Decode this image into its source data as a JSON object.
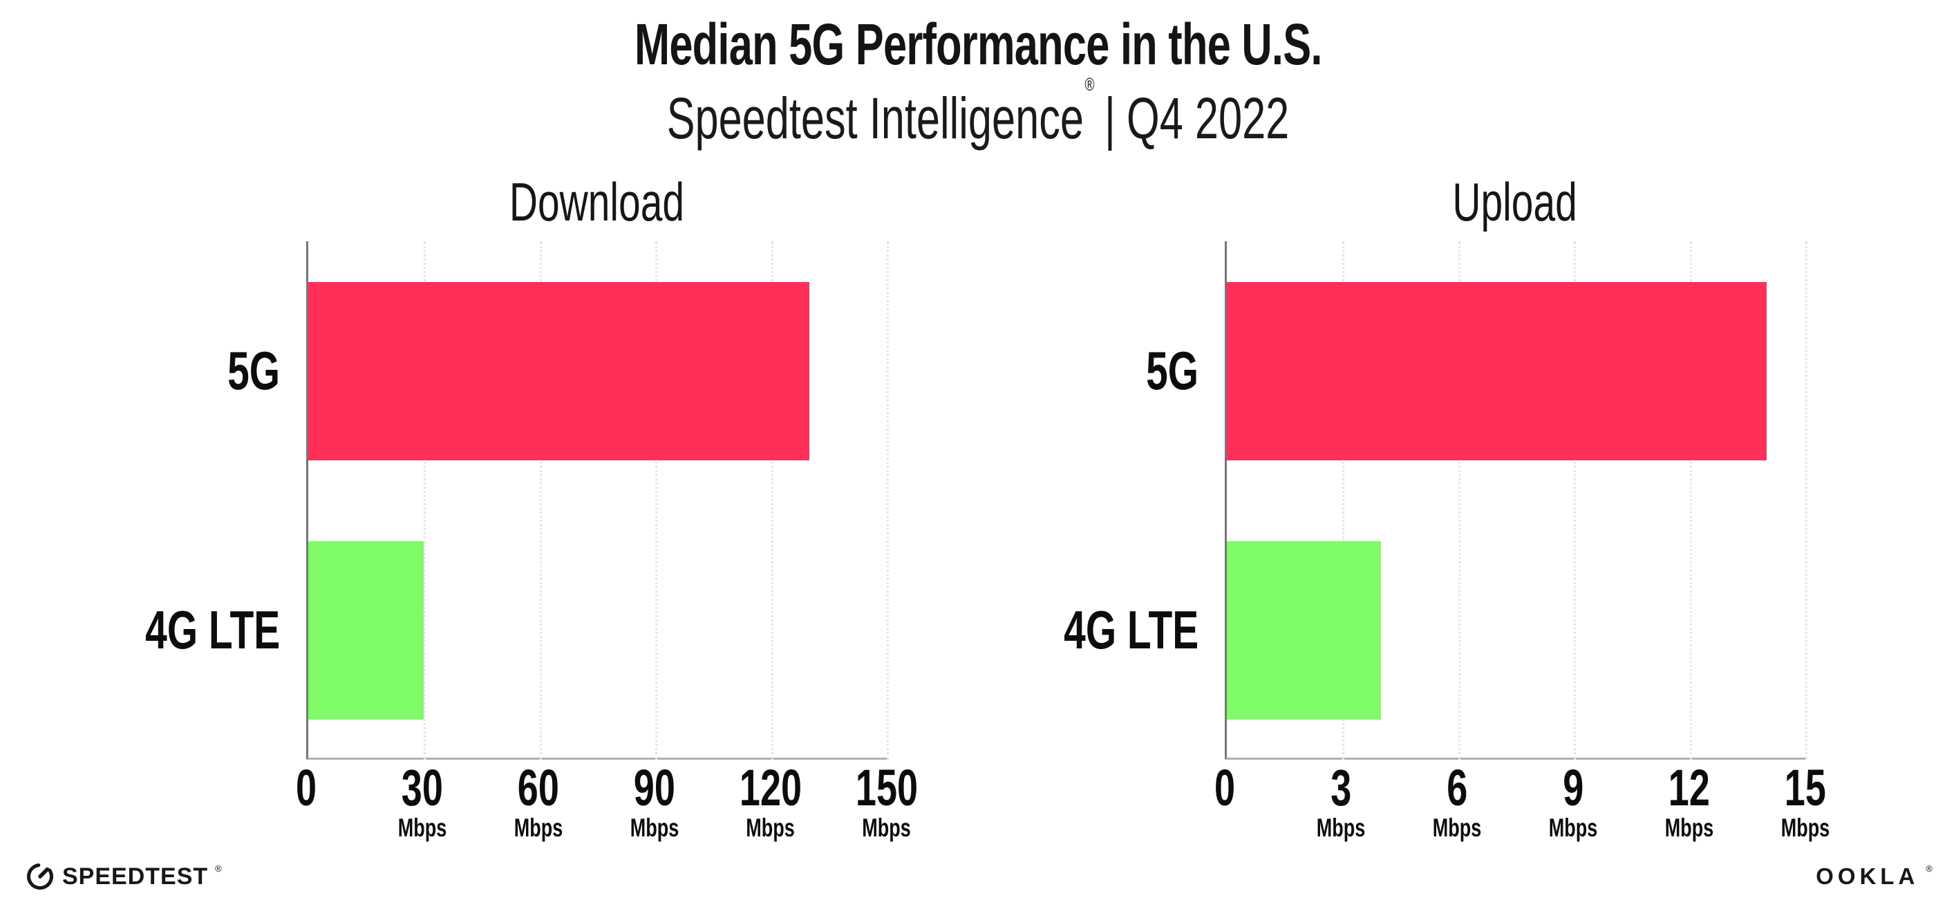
{
  "header": {
    "title": "Median 5G Performance in the U.S.",
    "subtitle_brand": "Speedtest Intelligence",
    "subtitle_registered": "®",
    "subtitle_separator": "|",
    "subtitle_period": "Q4 2022"
  },
  "footer": {
    "speedtest_label": "SPEEDTEST",
    "speedtest_mark": "®",
    "speedtest_icon": "gauge-icon",
    "ookla_label": "OOKLA",
    "ookla_mark": "®"
  },
  "colors": {
    "bar_5g": "#FF2F59",
    "bar_4g_lte": "#7EFB66",
    "grid_dotted": "#E4E4EE",
    "y_axis": "#77767E",
    "x_axis": "#B0AFB6",
    "text": "#121212"
  },
  "chart_data": [
    {
      "type": "bar",
      "orientation": "horizontal",
      "title": "Download",
      "categories": [
        "5G",
        "4G LTE"
      ],
      "values": [
        130,
        30
      ],
      "unit": "Mbps",
      "xlim": [
        0,
        150
      ],
      "xticks": [
        0,
        30,
        60,
        90,
        120,
        150
      ],
      "xtick_unit": "Mbps",
      "grid": "vertical-dotted",
      "legend": "none",
      "bar_colors": [
        "#FF2F59",
        "#7EFB66"
      ]
    },
    {
      "type": "bar",
      "orientation": "horizontal",
      "title": "Upload",
      "categories": [
        "5G",
        "4G LTE"
      ],
      "values": [
        14,
        4
      ],
      "unit": "Mbps",
      "xlim": [
        0,
        15
      ],
      "xticks": [
        0,
        3,
        6,
        9,
        12,
        15
      ],
      "xtick_unit": "Mbps",
      "grid": "vertical-dotted",
      "legend": "none",
      "bar_colors": [
        "#FF2F59",
        "#7EFB66"
      ]
    }
  ]
}
